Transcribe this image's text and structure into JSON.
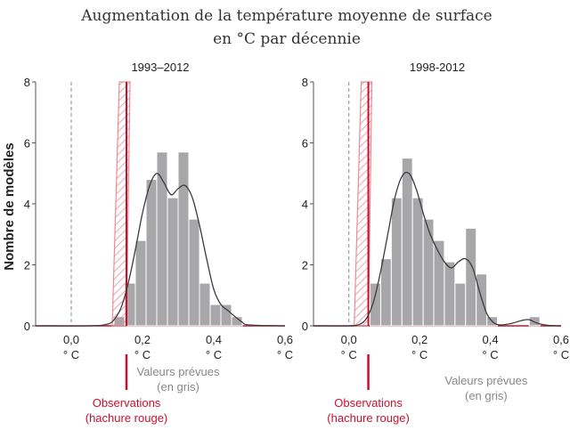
{
  "figure": {
    "title_line1": "Augmentation de la température moyenne de surface",
    "title_line2": "en °C par décennie",
    "ylabel": "Nombre de modèles"
  },
  "chart_data": [
    {
      "type": "bar",
      "title": "1993–2012",
      "xlabel": "",
      "ylabel": "Nombre de modèles",
      "xlim": [
        -0.1,
        0.6
      ],
      "ylim": [
        0,
        8
      ],
      "x_ticks": [
        {
          "value": 0.0,
          "label": "0,0"
        },
        {
          "value": 0.2,
          "label": "0,2"
        },
        {
          "value": 0.4,
          "label": "0,4"
        },
        {
          "value": 0.6,
          "label": "0,6"
        }
      ],
      "x_unit_labels": [
        "° C",
        "° C",
        "° C",
        "° C"
      ],
      "y_ticks": [
        0,
        2,
        4,
        6,
        8
      ],
      "bin_width": 0.03,
      "bins": [
        {
          "x0": 0.12,
          "count": 0.3
        },
        {
          "x0": 0.15,
          "count": 1.4
        },
        {
          "x0": 0.18,
          "count": 2.8
        },
        {
          "x0": 0.21,
          "count": 4.8
        },
        {
          "x0": 0.24,
          "count": 5.7
        },
        {
          "x0": 0.27,
          "count": 4.2
        },
        {
          "x0": 0.3,
          "count": 5.7
        },
        {
          "x0": 0.33,
          "count": 3.5
        },
        {
          "x0": 0.36,
          "count": 1.4
        },
        {
          "x0": 0.39,
          "count": 0.7
        },
        {
          "x0": 0.42,
          "count": 0.7
        },
        {
          "x0": 0.45,
          "count": 0.3
        }
      ],
      "curve": {
        "x": [
          -0.1,
          0.05,
          0.1,
          0.12,
          0.14,
          0.16,
          0.18,
          0.2,
          0.22,
          0.24,
          0.26,
          0.28,
          0.3,
          0.32,
          0.34,
          0.36,
          0.38,
          0.4,
          0.42,
          0.44,
          0.46,
          0.48,
          0.5,
          0.6
        ],
        "y": [
          0,
          0,
          0.05,
          0.2,
          0.6,
          1.4,
          2.5,
          3.7,
          4.6,
          5.0,
          4.7,
          4.3,
          4.5,
          4.6,
          4.2,
          3.3,
          2.2,
          1.2,
          0.7,
          0.5,
          0.3,
          0.12,
          0.03,
          0
        ]
      },
      "observations": {
        "line_x": 0.155,
        "hatch_polygon": [
          [
            0.115,
            0
          ],
          [
            0.155,
            0
          ],
          [
            0.165,
            8
          ],
          [
            0.135,
            8
          ]
        ],
        "label_line1": "Observations",
        "label_line2": "(hachure rouge)"
      },
      "predicted_label_line1": "Valeurs prévues",
      "predicted_label_line2": "(en gris)"
    },
    {
      "type": "bar",
      "title": "1998-2012",
      "xlabel": "",
      "ylabel": "",
      "xlim": [
        -0.1,
        0.6
      ],
      "ylim": [
        0,
        8
      ],
      "x_ticks": [
        {
          "value": 0.0,
          "label": "0,0"
        },
        {
          "value": 0.2,
          "label": "0,2"
        },
        {
          "value": 0.4,
          "label": "0,4"
        },
        {
          "value": 0.6,
          "label": "0,6"
        }
      ],
      "x_unit_labels": [
        "° C",
        "° C",
        "° C",
        "° C"
      ],
      "y_ticks": [
        0,
        2,
        4,
        6,
        8
      ],
      "bin_width": 0.03,
      "bins": [
        {
          "x0": 0.06,
          "count": 1.4
        },
        {
          "x0": 0.09,
          "count": 2.2
        },
        {
          "x0": 0.12,
          "count": 4.2
        },
        {
          "x0": 0.15,
          "count": 5.5
        },
        {
          "x0": 0.18,
          "count": 4.2
        },
        {
          "x0": 0.21,
          "count": 3.5
        },
        {
          "x0": 0.24,
          "count": 2.8
        },
        {
          "x0": 0.27,
          "count": 2.1
        },
        {
          "x0": 0.3,
          "count": 1.4
        },
        {
          "x0": 0.33,
          "count": 3.2
        },
        {
          "x0": 0.36,
          "count": 1.7
        },
        {
          "x0": 0.39,
          "count": 0.3
        },
        {
          "x0": 0.51,
          "count": 0.3
        }
      ],
      "curve": {
        "x": [
          -0.1,
          0.0,
          0.03,
          0.05,
          0.07,
          0.09,
          0.11,
          0.13,
          0.15,
          0.17,
          0.19,
          0.21,
          0.23,
          0.25,
          0.27,
          0.29,
          0.31,
          0.33,
          0.35,
          0.37,
          0.39,
          0.41,
          0.43,
          0.46,
          0.49,
          0.51,
          0.53,
          0.56,
          0.6
        ],
        "y": [
          0,
          0,
          0.05,
          0.25,
          0.8,
          1.8,
          3.0,
          4.2,
          4.9,
          5.0,
          4.5,
          3.7,
          3.0,
          2.5,
          2.1,
          1.9,
          2.1,
          2.2,
          1.9,
          1.1,
          0.4,
          0.1,
          0.03,
          0.08,
          0.18,
          0.2,
          0.1,
          0.02,
          0
        ]
      },
      "observations": {
        "line_x": 0.055,
        "hatch_polygon": [
          [
            0.015,
            0
          ],
          [
            0.055,
            0
          ],
          [
            0.065,
            8
          ],
          [
            0.035,
            8
          ]
        ],
        "label_line1": "Observations",
        "label_line2": "(hachure rouge)"
      },
      "predicted_label_line1": "Valeurs prévues",
      "predicted_label_line2": "(en gris)"
    }
  ],
  "colors": {
    "bar_fill": "#a7a7a9",
    "bar_stroke": "#ffffff",
    "curve": "#3c3c3c",
    "observation": "#c8102e",
    "hatch": "#e8868f",
    "axis": "#555555",
    "zero_line": "#888888",
    "grey_text": "#888888"
  }
}
